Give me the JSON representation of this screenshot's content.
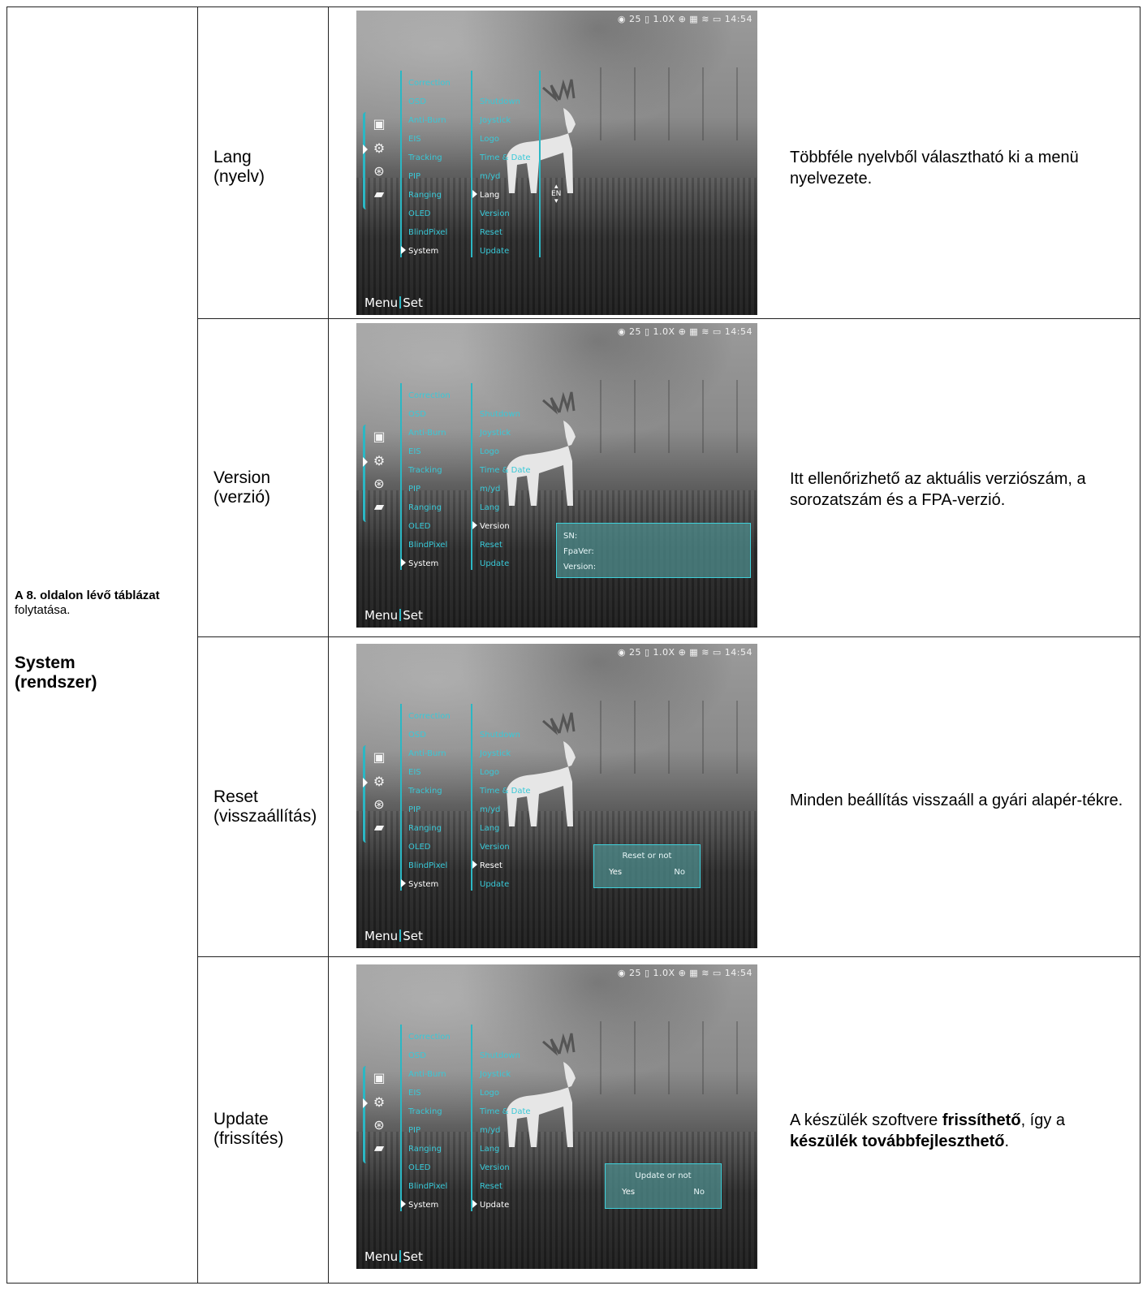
{
  "group": {
    "note_bold": "A 8. oldalon lévő táblázat",
    "note_normal": "folytatása.",
    "title_line1": "System",
    "title_line2": "(rendszer)"
  },
  "screen_common": {
    "status": "◉ 25 ▯ 1.0X ⊕ ▦ ≋ ▭ 14:54",
    "menu_col1": [
      "Correction",
      "OSD",
      "Anti-Burn",
      "EIS",
      "Tracking",
      "PIP",
      "Ranging",
      "OLED",
      "BlindPixel",
      "System"
    ],
    "menu_col2": [
      "Shutdown",
      "Joystick",
      "Logo",
      "Time & Date",
      "m/yd",
      "Lang",
      "Version",
      "Reset",
      "Update"
    ],
    "bottom_menu": "Menu",
    "bottom_set": "Set",
    "accent": "#2bb7c4"
  },
  "rows": [
    {
      "name1": "Lang",
      "name2": "(nyelv)",
      "desc": "Többféle nyelvből választható ki a menü nyelvezete.",
      "lang_value": "EN"
    },
    {
      "name1": "Version",
      "name2": "(verzió)",
      "desc": "Itt ellenőrizhető az aktuális verziószám, a sorozatszám és a FPA-verzió.",
      "popup": [
        "SN:",
        "FpaVer:",
        "Version:"
      ]
    },
    {
      "name1": "Reset",
      "name2": "(visszaállítás)",
      "desc": "Minden beállítás visszaáll a gyári alapér-tékre.",
      "popup_title": "Reset or not",
      "yes": "Yes",
      "no": "No"
    },
    {
      "name1": "Update",
      "name2": "(frissítés)",
      "desc_a": "A készülék szoftvere ",
      "desc_b": "frissíthető",
      "desc_c": ", így a ",
      "desc_d": "készülék továbbfejleszthető",
      "desc_e": ".",
      "popup_title": "Update or not",
      "yes": "Yes",
      "no": "No"
    }
  ]
}
